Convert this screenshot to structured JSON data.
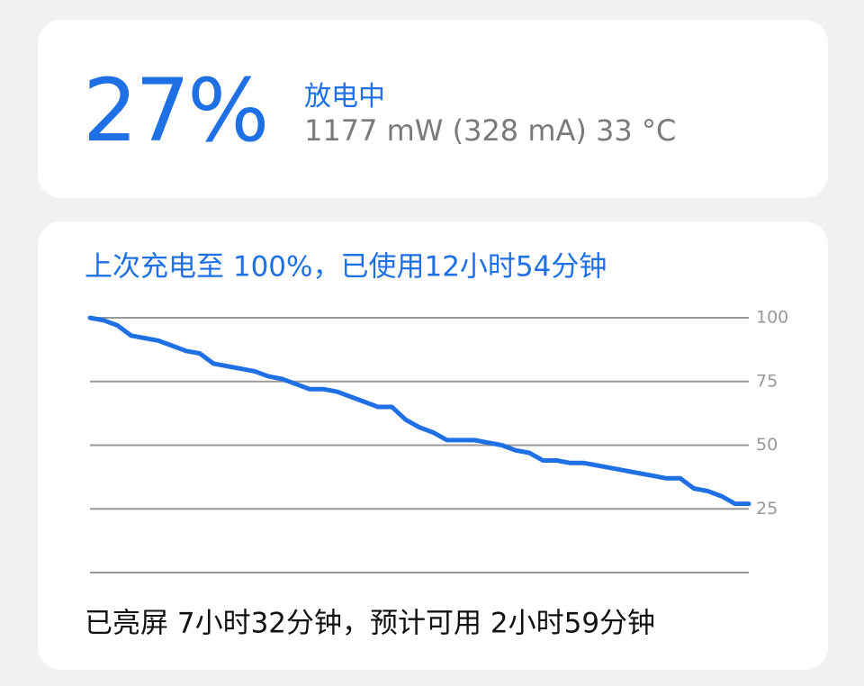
{
  "header": {
    "percent": "27%",
    "status": "放电中",
    "details": "1177 mW (328 mA) 33 °C"
  },
  "chart_data": {
    "type": "line",
    "title": "上次充电至 100%，已使用12小时54分钟",
    "values": [
      100,
      99,
      97,
      93,
      92,
      91,
      89,
      87,
      86,
      82,
      81,
      80,
      79,
      77,
      76,
      74,
      72,
      72,
      71,
      69,
      67,
      65,
      65,
      60,
      57,
      55,
      52,
      52,
      52,
      51,
      50,
      48,
      47,
      44,
      44,
      43,
      43,
      42,
      41,
      40,
      39,
      38,
      37,
      37,
      33,
      32,
      30,
      27,
      27
    ],
    "color": "#1f6fe5",
    "ylim": [
      0,
      100
    ],
    "yticks": [
      25,
      50,
      75,
      100
    ],
    "grid": true
  },
  "footer": "已亮屏 7小时32分钟，预计可用 2小时59分钟"
}
